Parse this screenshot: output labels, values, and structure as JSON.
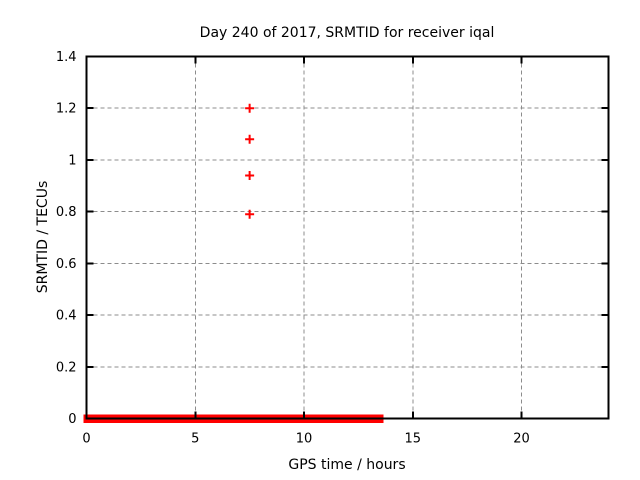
{
  "chart_data": {
    "type": "scatter",
    "title": "Day 240 of 2017, SRMTID for receiver iqal",
    "xlabel": "GPS time / hours",
    "ylabel": "SRMTID / TECUs",
    "xlim": [
      0,
      24
    ],
    "ylim": [
      0,
      1.4
    ],
    "xticks": {
      "values": [
        0,
        5,
        10,
        15,
        20
      ],
      "labels": [
        "0",
        "5",
        "10",
        "15",
        "20"
      ]
    },
    "yticks": {
      "values": [
        0,
        0.2,
        0.4,
        0.6,
        0.8,
        1.0,
        1.2,
        1.4
      ],
      "labels": [
        "0",
        "0.2",
        "0.4",
        "0.6",
        "0.8",
        "1",
        "1.2",
        "1.4"
      ]
    },
    "grid": {
      "visible": true,
      "style": "dashed",
      "color": "#8c8c8c"
    },
    "legend": "none",
    "colors": {
      "background": "#ffffff",
      "axis": "#000000",
      "data": "#ff0000"
    },
    "series": [
      {
        "name": "srmtid-zero-band",
        "kind": "band",
        "description": "dense run of zero-value points rendered as a thick line at y=0",
        "y": 0,
        "x_start": 0,
        "x_end": 13.6
      },
      {
        "name": "srmtid-peaks",
        "kind": "points",
        "marker": "plus",
        "points": [
          {
            "x": 7.5,
            "y": 1.2
          },
          {
            "x": 7.5,
            "y": 1.08
          },
          {
            "x": 7.5,
            "y": 0.94
          },
          {
            "x": 7.5,
            "y": 0.79
          }
        ]
      }
    ]
  }
}
